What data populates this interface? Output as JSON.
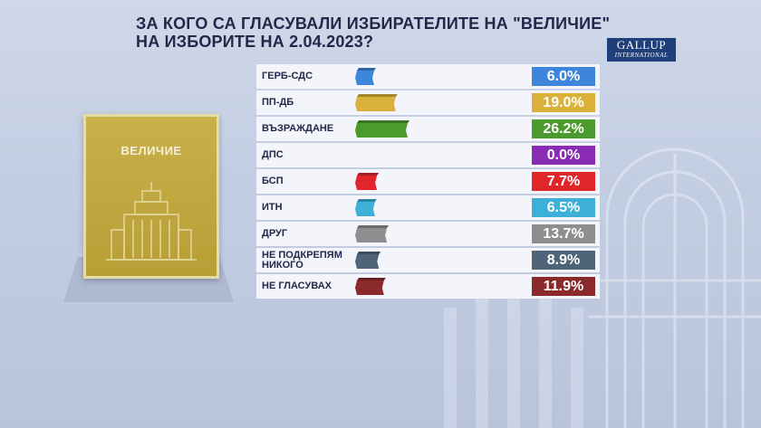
{
  "header": {
    "title_line1": "ЗА КОГО СА ГЛАСУВАЛИ ИЗБИРАТЕЛИТЕ НА \"ВЕЛИЧИЕ\"",
    "title_line2": "НА ИЗБОРИТЕ НА 2.04.2023?"
  },
  "logo": {
    "line1": "GALLUP",
    "line2": "INTERNATIONAL"
  },
  "ballot": {
    "party_name": "ВЕЛИЧИЕ",
    "icon": "building-icon"
  },
  "chart_data": {
    "type": "bar",
    "title": "ЗА КОГО СА ГЛАСУВАЛИ ИЗБИРАТЕЛИТЕ НА \"ВЕЛИЧИЕ\" НА ИЗБОРИТЕ НА 2.04.2023?",
    "categories": [
      "ГЕРБ-СДС",
      "ПП-ДБ",
      "ВЪЗРАЖДАНЕ",
      "ДПС",
      "БСП",
      "ИТН",
      "ДРУГ",
      "НЕ ПОДКРЕПЯМ\nНИКОГО",
      "НЕ ГЛАСУВАХ"
    ],
    "values": [
      6.0,
      19.0,
      26.2,
      0.0,
      7.7,
      6.5,
      13.7,
      8.9,
      11.9
    ],
    "value_labels": [
      "6.0%",
      "19.0%",
      "26.2%",
      "0.0%",
      "7.7%",
      "6.5%",
      "13.7%",
      "8.9%",
      "11.9%"
    ],
    "colors": [
      "#3d86dc",
      "#d9b13a",
      "#4a9a2e",
      "#8a2bb5",
      "#e0262b",
      "#3db0d8",
      "#8e8e8e",
      "#4f6478",
      "#8a2a2a"
    ],
    "xlim": [
      0,
      26.2
    ]
  }
}
